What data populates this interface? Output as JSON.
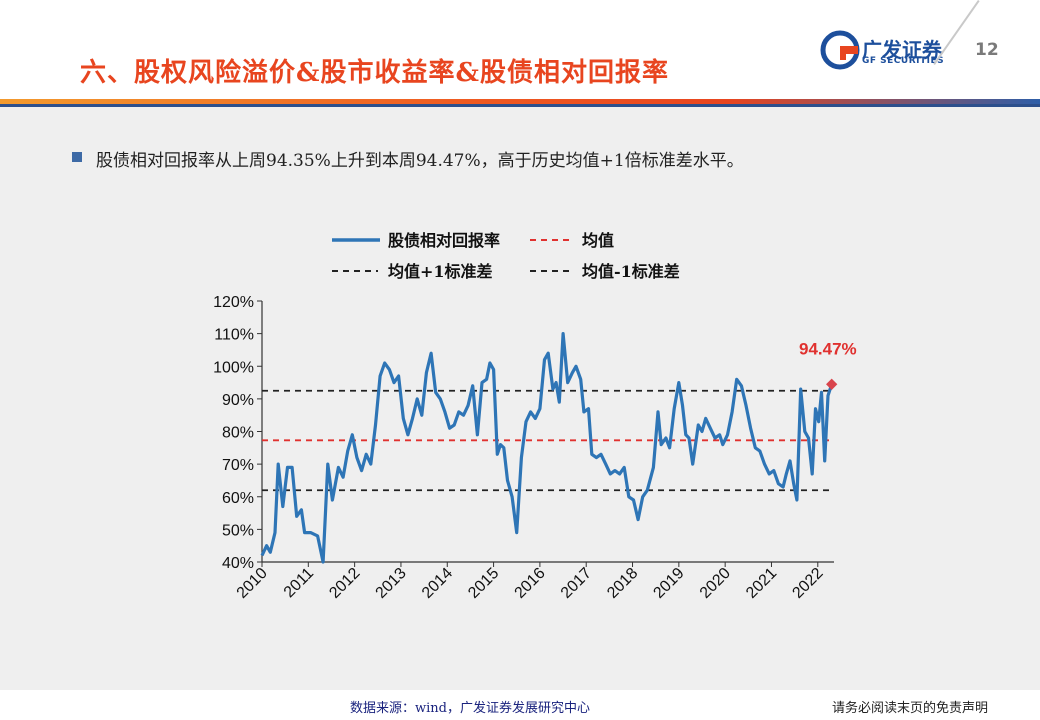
{
  "header": {
    "title": "六、股权风险溢价&股市收益率&股债相对回报率",
    "logo_name": "广发证券",
    "logo_sub": "GF SECURITIES",
    "page_number": "12"
  },
  "bullet": {
    "text": "股债相对回报率从上周94.35%上升到本周94.47%，高于历史均值+1倍标准差水平。"
  },
  "footer": {
    "source": "数据来源：wind，广发证券发展研究中心",
    "disclaimer": "请务必阅读末页的免责声明"
  },
  "colors": {
    "title": "#e8451f",
    "series": "#2e75b6",
    "mean_line": "#e0312f",
    "std_lines": "#222222",
    "last_marker": "#d9444c",
    "callout": "#e0312f"
  },
  "chart_data": {
    "type": "line",
    "legend": {
      "series": "股债相对回报率",
      "mean": "均值",
      "plus_std": "均值+1标准差",
      "minus_std": "均值-1标准差"
    },
    "ylim": [
      40,
      120
    ],
    "yticks": [
      "40%",
      "50%",
      "60%",
      "70%",
      "80%",
      "90%",
      "100%",
      "110%",
      "120%"
    ],
    "xlim": [
      2010,
      2022.35
    ],
    "xticks": [
      "2010",
      "2011",
      "2012",
      "2013",
      "2014",
      "2015",
      "2016",
      "2017",
      "2018",
      "2019",
      "2020",
      "2021",
      "2022"
    ],
    "reference_lines": {
      "mean": 77.3,
      "plus_std": 92.5,
      "minus_std": 62.0
    },
    "callout": "94.47%",
    "series": [
      {
        "name": "股债相对回报率",
        "points": [
          [
            2010.0,
            42
          ],
          [
            2010.1,
            45
          ],
          [
            2010.18,
            43
          ],
          [
            2010.28,
            49
          ],
          [
            2010.35,
            70
          ],
          [
            2010.45,
            57
          ],
          [
            2010.55,
            69
          ],
          [
            2010.65,
            69
          ],
          [
            2010.75,
            54
          ],
          [
            2010.85,
            56
          ],
          [
            2010.92,
            49
          ],
          [
            2011.05,
            49
          ],
          [
            2011.2,
            48
          ],
          [
            2011.32,
            40
          ],
          [
            2011.42,
            70
          ],
          [
            2011.52,
            59
          ],
          [
            2011.65,
            69
          ],
          [
            2011.75,
            66
          ],
          [
            2011.85,
            74
          ],
          [
            2011.95,
            79
          ],
          [
            2012.05,
            72
          ],
          [
            2012.15,
            68
          ],
          [
            2012.25,
            73
          ],
          [
            2012.35,
            70
          ],
          [
            2012.45,
            82
          ],
          [
            2012.55,
            97
          ],
          [
            2012.65,
            101
          ],
          [
            2012.75,
            99
          ],
          [
            2012.85,
            95
          ],
          [
            2012.95,
            97
          ],
          [
            2013.05,
            84
          ],
          [
            2013.15,
            79
          ],
          [
            2013.25,
            84
          ],
          [
            2013.35,
            90
          ],
          [
            2013.45,
            85
          ],
          [
            2013.55,
            98
          ],
          [
            2013.65,
            104
          ],
          [
            2013.75,
            92
          ],
          [
            2013.85,
            90
          ],
          [
            2013.95,
            86
          ],
          [
            2014.05,
            81
          ],
          [
            2014.15,
            82
          ],
          [
            2014.25,
            86
          ],
          [
            2014.35,
            85
          ],
          [
            2014.45,
            88
          ],
          [
            2014.55,
            94
          ],
          [
            2014.65,
            79
          ],
          [
            2014.75,
            95
          ],
          [
            2014.85,
            96
          ],
          [
            2014.92,
            101
          ],
          [
            2015.0,
            99
          ],
          [
            2015.08,
            73
          ],
          [
            2015.15,
            76
          ],
          [
            2015.22,
            75
          ],
          [
            2015.3,
            65
          ],
          [
            2015.4,
            60
          ],
          [
            2015.5,
            49
          ],
          [
            2015.6,
            72
          ],
          [
            2015.7,
            83
          ],
          [
            2015.8,
            86
          ],
          [
            2015.9,
            84
          ],
          [
            2016.0,
            87
          ],
          [
            2016.1,
            102
          ],
          [
            2016.18,
            104
          ],
          [
            2016.28,
            93
          ],
          [
            2016.35,
            95
          ],
          [
            2016.42,
            89
          ],
          [
            2016.5,
            110
          ],
          [
            2016.6,
            95
          ],
          [
            2016.7,
            98
          ],
          [
            2016.78,
            100
          ],
          [
            2016.88,
            96
          ],
          [
            2016.95,
            86
          ],
          [
            2017.05,
            87
          ],
          [
            2017.12,
            73
          ],
          [
            2017.22,
            72
          ],
          [
            2017.32,
            73
          ],
          [
            2017.42,
            70
          ],
          [
            2017.52,
            67
          ],
          [
            2017.62,
            68
          ],
          [
            2017.72,
            67
          ],
          [
            2017.82,
            69
          ],
          [
            2017.92,
            60
          ],
          [
            2018.02,
            59
          ],
          [
            2018.12,
            53
          ],
          [
            2018.22,
            60
          ],
          [
            2018.32,
            62
          ],
          [
            2018.45,
            69
          ],
          [
            2018.55,
            86
          ],
          [
            2018.62,
            76
          ],
          [
            2018.72,
            78
          ],
          [
            2018.8,
            75
          ],
          [
            2018.9,
            87
          ],
          [
            2019.0,
            95
          ],
          [
            2019.08,
            88
          ],
          [
            2019.15,
            79
          ],
          [
            2019.22,
            78
          ],
          [
            2019.3,
            70
          ],
          [
            2019.42,
            82
          ],
          [
            2019.5,
            80
          ],
          [
            2019.58,
            84
          ],
          [
            2019.68,
            81
          ],
          [
            2019.78,
            78
          ],
          [
            2019.88,
            79
          ],
          [
            2019.95,
            76
          ],
          [
            2020.05,
            79
          ],
          [
            2020.15,
            86
          ],
          [
            2020.25,
            96
          ],
          [
            2020.35,
            94
          ],
          [
            2020.45,
            88
          ],
          [
            2020.55,
            81
          ],
          [
            2020.65,
            75
          ],
          [
            2020.75,
            74
          ],
          [
            2020.85,
            70
          ],
          [
            2020.95,
            67
          ],
          [
            2021.05,
            68
          ],
          [
            2021.15,
            64
          ],
          [
            2021.25,
            63
          ],
          [
            2021.32,
            67
          ],
          [
            2021.4,
            71
          ],
          [
            2021.48,
            64
          ],
          [
            2021.55,
            59
          ],
          [
            2021.63,
            93
          ],
          [
            2021.72,
            80
          ],
          [
            2021.8,
            78
          ],
          [
            2021.88,
            67
          ],
          [
            2021.95,
            87
          ],
          [
            2022.02,
            83
          ],
          [
            2022.08,
            92
          ],
          [
            2022.15,
            71
          ],
          [
            2022.22,
            91
          ],
          [
            2022.3,
            94.47
          ]
        ]
      }
    ]
  }
}
